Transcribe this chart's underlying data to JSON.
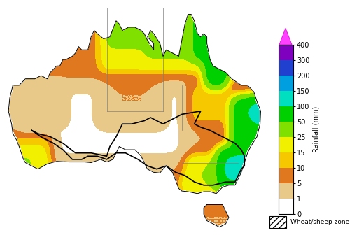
{
  "colorbar_levels": [
    0,
    1,
    5,
    10,
    15,
    25,
    50,
    100,
    150,
    200,
    300,
    400
  ],
  "colorbar_colors": [
    "#FFFFFF",
    "#E8C98A",
    "#E07820",
    "#F5C800",
    "#F0F000",
    "#80E000",
    "#00D000",
    "#00E0C0",
    "#00A0E0",
    "#2040D0",
    "#8000C0",
    "#FF00FF"
  ],
  "colorbar_ylabel": "Rainfall (mm)",
  "legend_label": "Wheat/sheep zone",
  "background_color": "#FFFFFF",
  "figsize": [
    5.0,
    3.36
  ],
  "dpi": 100
}
